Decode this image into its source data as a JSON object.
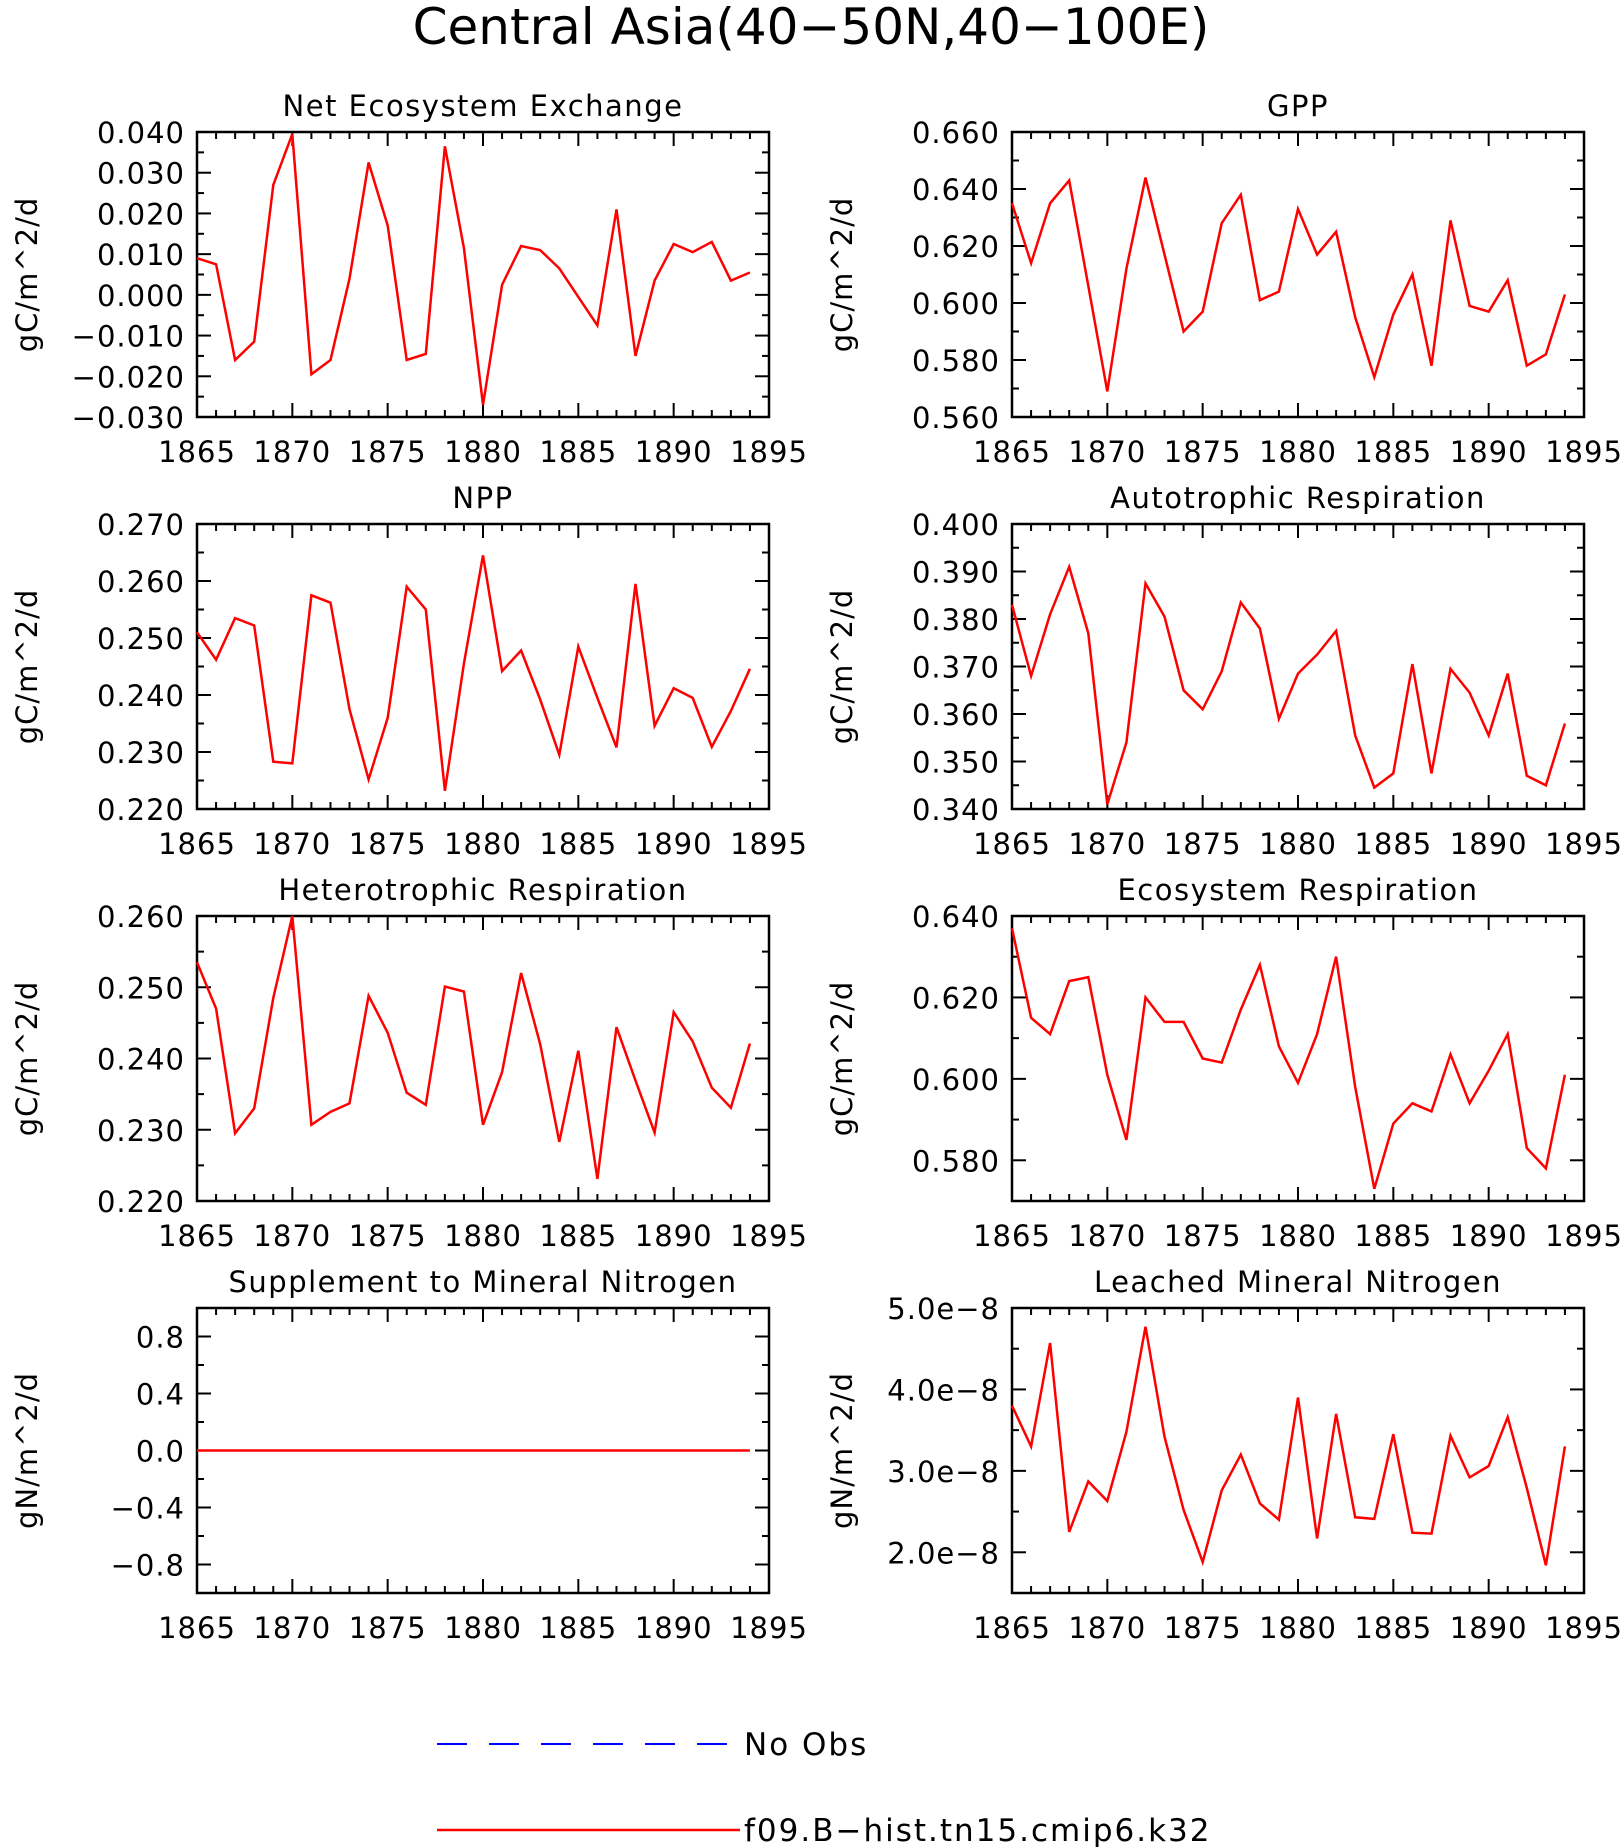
{
  "figure": {
    "title": "Central Asia(40−50N,40−100E)",
    "legend": [
      {
        "label": "No Obs",
        "color": "#0000ff",
        "style": "dashed"
      },
      {
        "label": "f09.B−hist.tn15.cmip6.k32",
        "color": "#ff0000",
        "style": "solid"
      }
    ]
  },
  "chart_data": [
    {
      "type": "line",
      "title": "Net Ecosystem Exchange",
      "xlabel": "",
      "ylabel": "gC/m^2/d",
      "xlim": [
        1865,
        1895
      ],
      "ylim": [
        -0.03,
        0.04
      ],
      "xticks": [
        "1865",
        "1870",
        "1875",
        "1880",
        "1885",
        "1890",
        "1895"
      ],
      "yticks": [
        -0.03,
        -0.02,
        -0.01,
        0.0,
        0.01,
        0.02,
        0.03,
        0.04
      ],
      "ytick_labels": [
        "−0.030",
        "−0.020",
        "−0.010",
        "0.000",
        "0.010",
        "0.020",
        "0.030",
        "0.040"
      ],
      "color": "#ff0000",
      "x": [
        1865,
        1866,
        1867,
        1868,
        1869,
        1870,
        1871,
        1872,
        1873,
        1874,
        1875,
        1876,
        1877,
        1878,
        1879,
        1880,
        1881,
        1882,
        1883,
        1884,
        1885,
        1886,
        1887,
        1888,
        1889,
        1890,
        1891,
        1892,
        1893,
        1894
      ],
      "values": [
        0.009,
        0.0075,
        -0.016,
        -0.0115,
        0.027,
        0.0395,
        -0.0195,
        -0.016,
        0.004,
        0.0325,
        0.017,
        -0.016,
        -0.0145,
        0.0365,
        0.0115,
        -0.027,
        0.0025,
        0.012,
        0.011,
        0.0065,
        -0.0005,
        -0.0075,
        0.021,
        -0.015,
        0.0035,
        0.0125,
        0.0105,
        0.013,
        0.0035,
        0.0055
      ]
    },
    {
      "type": "line",
      "title": "GPP",
      "xlabel": "",
      "ylabel": "gC/m^2/d",
      "xlim": [
        1865,
        1895
      ],
      "ylim": [
        0.56,
        0.66
      ],
      "xticks": [
        "1865",
        "1870",
        "1875",
        "1880",
        "1885",
        "1890",
        "1895"
      ],
      "yticks": [
        0.56,
        0.58,
        0.6,
        0.62,
        0.64,
        0.66
      ],
      "ytick_labels": [
        "0.560",
        "0.580",
        "0.600",
        "0.620",
        "0.640",
        "0.660"
      ],
      "color": "#ff0000",
      "x": [
        1865,
        1866,
        1867,
        1868,
        1869,
        1870,
        1871,
        1872,
        1873,
        1874,
        1875,
        1876,
        1877,
        1878,
        1879,
        1880,
        1881,
        1882,
        1883,
        1884,
        1885,
        1886,
        1887,
        1888,
        1889,
        1890,
        1891,
        1892,
        1893,
        1894
      ],
      "values": [
        0.635,
        0.614,
        0.635,
        0.643,
        0.606,
        0.569,
        0.612,
        0.644,
        0.617,
        0.59,
        0.597,
        0.628,
        0.638,
        0.601,
        0.604,
        0.633,
        0.617,
        0.625,
        0.595,
        0.574,
        0.596,
        0.61,
        0.578,
        0.629,
        0.599,
        0.597,
        0.608,
        0.578,
        0.582,
        0.603
      ]
    },
    {
      "type": "line",
      "title": "NPP",
      "xlabel": "",
      "ylabel": "gC/m^2/d",
      "xlim": [
        1865,
        1895
      ],
      "ylim": [
        0.22,
        0.27
      ],
      "xticks": [
        "1865",
        "1870",
        "1875",
        "1880",
        "1885",
        "1890",
        "1895"
      ],
      "yticks": [
        0.22,
        0.23,
        0.24,
        0.25,
        0.26,
        0.27
      ],
      "ytick_labels": [
        "0.220",
        "0.230",
        "0.240",
        "0.250",
        "0.260",
        "0.270"
      ],
      "color": "#ff0000",
      "x": [
        1865,
        1866,
        1867,
        1868,
        1869,
        1870,
        1871,
        1872,
        1873,
        1874,
        1875,
        1876,
        1877,
        1878,
        1879,
        1880,
        1881,
        1882,
        1883,
        1884,
        1885,
        1886,
        1887,
        1888,
        1889,
        1890,
        1891,
        1892,
        1893,
        1894
      ],
      "values": [
        0.251,
        0.2462,
        0.2535,
        0.2522,
        0.2283,
        0.228,
        0.2575,
        0.2562,
        0.2375,
        0.2252,
        0.236,
        0.259,
        0.255,
        0.2232,
        0.2455,
        0.2645,
        0.2442,
        0.2478,
        0.2392,
        0.2295,
        0.2485,
        0.2395,
        0.2308,
        0.2595,
        0.2346,
        0.2412,
        0.2395,
        0.2309,
        0.2372,
        0.2446
      ]
    },
    {
      "type": "line",
      "title": "Autotrophic Respiration",
      "xlabel": "",
      "ylabel": "gC/m^2/d",
      "xlim": [
        1865,
        1895
      ],
      "ylim": [
        0.34,
        0.4
      ],
      "xticks": [
        "1865",
        "1870",
        "1875",
        "1880",
        "1885",
        "1890",
        "1895"
      ],
      "yticks": [
        0.34,
        0.35,
        0.36,
        0.37,
        0.38,
        0.39,
        0.4
      ],
      "ytick_labels": [
        "0.340",
        "0.350",
        "0.360",
        "0.370",
        "0.380",
        "0.390",
        "0.400"
      ],
      "color": "#ff0000",
      "x": [
        1865,
        1866,
        1867,
        1868,
        1869,
        1870,
        1871,
        1872,
        1873,
        1874,
        1875,
        1876,
        1877,
        1878,
        1879,
        1880,
        1881,
        1882,
        1883,
        1884,
        1885,
        1886,
        1887,
        1888,
        1889,
        1890,
        1891,
        1892,
        1893,
        1894
      ],
      "values": [
        0.383,
        0.368,
        0.381,
        0.391,
        0.377,
        0.341,
        0.354,
        0.3875,
        0.3805,
        0.365,
        0.361,
        0.369,
        0.3835,
        0.378,
        0.359,
        0.3685,
        0.3725,
        0.3775,
        0.3555,
        0.3445,
        0.3475,
        0.3705,
        0.3475,
        0.3695,
        0.3645,
        0.3555,
        0.3685,
        0.347,
        0.345,
        0.358
      ]
    },
    {
      "type": "line",
      "title": "Heterotrophic Respiration",
      "xlabel": "",
      "ylabel": "gC/m^2/d",
      "xlim": [
        1865,
        1895
      ],
      "ylim": [
        0.22,
        0.26
      ],
      "xticks": [
        "1865",
        "1870",
        "1875",
        "1880",
        "1885",
        "1890",
        "1895"
      ],
      "yticks": [
        0.22,
        0.23,
        0.24,
        0.25,
        0.26
      ],
      "ytick_labels": [
        "0.220",
        "0.230",
        "0.240",
        "0.250",
        "0.260"
      ],
      "color": "#ff0000",
      "x": [
        1865,
        1866,
        1867,
        1868,
        1869,
        1870,
        1871,
        1872,
        1873,
        1874,
        1875,
        1876,
        1877,
        1878,
        1879,
        1880,
        1881,
        1882,
        1883,
        1884,
        1885,
        1886,
        1887,
        1888,
        1889,
        1890,
        1891,
        1892,
        1893,
        1894
      ],
      "values": [
        0.2535,
        0.247,
        0.2295,
        0.233,
        0.2485,
        0.26,
        0.2307,
        0.2325,
        0.2337,
        0.2488,
        0.2436,
        0.2352,
        0.2335,
        0.2501,
        0.2494,
        0.2307,
        0.2381,
        0.252,
        0.242,
        0.2283,
        0.2411,
        0.2231,
        0.2444,
        0.2369,
        0.2296,
        0.2465,
        0.2424,
        0.2359,
        0.2331,
        0.2421
      ]
    },
    {
      "type": "line",
      "title": "Ecosystem Respiration",
      "xlabel": "",
      "ylabel": "gC/m^2/d",
      "xlim": [
        1865,
        1895
      ],
      "ylim": [
        0.57,
        0.64
      ],
      "xticks": [
        "1865",
        "1870",
        "1875",
        "1880",
        "1885",
        "1890",
        "1895"
      ],
      "yticks": [
        0.58,
        0.6,
        0.62,
        0.64
      ],
      "ytick_labels": [
        "0.580",
        "0.600",
        "0.620",
        "0.640"
      ],
      "color": "#ff0000",
      "x": [
        1865,
        1866,
        1867,
        1868,
        1869,
        1870,
        1871,
        1872,
        1873,
        1874,
        1875,
        1876,
        1877,
        1878,
        1879,
        1880,
        1881,
        1882,
        1883,
        1884,
        1885,
        1886,
        1887,
        1888,
        1889,
        1890,
        1891,
        1892,
        1893,
        1894
      ],
      "values": [
        0.637,
        0.615,
        0.611,
        0.624,
        0.625,
        0.601,
        0.585,
        0.62,
        0.614,
        0.614,
        0.605,
        0.604,
        0.617,
        0.628,
        0.608,
        0.599,
        0.611,
        0.63,
        0.598,
        0.573,
        0.589,
        0.594,
        0.592,
        0.606,
        0.594,
        0.602,
        0.611,
        0.583,
        0.578,
        0.601
      ]
    },
    {
      "type": "line",
      "title": "Supplement to Mineral Nitrogen",
      "xlabel": "",
      "ylabel": "gN/m^2/d",
      "xlim": [
        1865,
        1895
      ],
      "ylim": [
        -1.0,
        1.0
      ],
      "xticks": [
        "1865",
        "1870",
        "1875",
        "1880",
        "1885",
        "1890",
        "1895"
      ],
      "yticks": [
        -0.8,
        -0.4,
        0.0,
        0.4,
        0.8
      ],
      "ytick_labels": [
        "−0.8",
        "−0.4",
        "0.0",
        "0.4",
        "0.8"
      ],
      "color": "#ff0000",
      "x": [
        1865,
        1866,
        1867,
        1868,
        1869,
        1870,
        1871,
        1872,
        1873,
        1874,
        1875,
        1876,
        1877,
        1878,
        1879,
        1880,
        1881,
        1882,
        1883,
        1884,
        1885,
        1886,
        1887,
        1888,
        1889,
        1890,
        1891,
        1892,
        1893,
        1894
      ],
      "values": [
        0,
        0,
        0,
        0,
        0,
        0,
        0,
        0,
        0,
        0,
        0,
        0,
        0,
        0,
        0,
        0,
        0,
        0,
        0,
        0,
        0,
        0,
        0,
        0,
        0,
        0,
        0,
        0,
        0,
        0
      ]
    },
    {
      "type": "line",
      "title": "Leached Mineral Nitrogen",
      "xlabel": "",
      "ylabel": "gN/m^2/d",
      "xlim": [
        1865,
        1895
      ],
      "ylim": [
        1.5e-08,
        5e-08
      ],
      "xticks": [
        "1865",
        "1870",
        "1875",
        "1880",
        "1885",
        "1890",
        "1895"
      ],
      "yticks": [
        2e-08,
        3e-08,
        4e-08,
        5e-08
      ],
      "ytick_labels": [
        "2.0e−8",
        "3.0e−8",
        "4.0e−8",
        "5.0e−8"
      ],
      "color": "#ff0000",
      "x": [
        1865,
        1866,
        1867,
        1868,
        1869,
        1870,
        1871,
        1872,
        1873,
        1874,
        1875,
        1876,
        1877,
        1878,
        1879,
        1880,
        1881,
        1882,
        1883,
        1884,
        1885,
        1886,
        1887,
        1888,
        1889,
        1890,
        1891,
        1892,
        1893,
        1894
      ],
      "values": [
        3.8e-08,
        3.3e-08,
        4.57e-08,
        2.25e-08,
        2.87e-08,
        2.63e-08,
        3.48e-08,
        4.77e-08,
        3.42e-08,
        2.52e-08,
        1.88e-08,
        2.76e-08,
        3.2e-08,
        2.6e-08,
        2.4e-08,
        3.9e-08,
        2.17e-08,
        3.7e-08,
        2.43e-08,
        2.41e-08,
        3.45e-08,
        2.24e-08,
        2.23e-08,
        3.43e-08,
        2.92e-08,
        3.06e-08,
        3.66e-08,
        2.79e-08,
        1.84e-08,
        3.3e-08
      ]
    }
  ]
}
